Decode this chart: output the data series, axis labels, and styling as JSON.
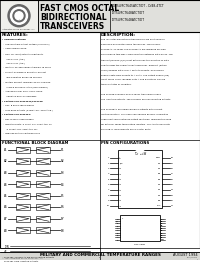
{
  "bg_color": "#f0f0ec",
  "white": "#ffffff",
  "black": "#000000",
  "dark_gray": "#444444",
  "med_gray": "#888888",
  "light_gray": "#cccccc",
  "header_bg": "#e0e0dc",
  "bottom_bg": "#d8d8d4",
  "title_line1": "FAST CMOS OCTAL",
  "title_line2": "BIDIRECTIONAL",
  "title_line3": "TRANSCEIVERS",
  "pn_line1": "IDT54/FCT645ATCT/DT - D/48-4TCT",
  "pn_line2": "IDT54/FCT648ATCT/DT",
  "pn_line3": "IDT54/FCT648ATCT/DT",
  "feat_title": "FEATURES:",
  "desc_title": "DESCRIPTION:",
  "fbd_title": "FUNCTIONAL BLOCK DIAGRAM",
  "pin_title": "PIN CONFIGURATIONS",
  "bottom_text": "MILITARY AND COMMERCIAL TEMPERATURE RANGES",
  "bottom_date": "AUGUST 1994",
  "a_pins": [
    "A1",
    "A2",
    "A3",
    "A4",
    "A5",
    "A6",
    "A7",
    "A8"
  ],
  "b_pins": [
    "B1",
    "B2",
    "B3",
    "B4",
    "B5",
    "B6",
    "B7",
    "B8"
  ],
  "dip_left_pins": [
    "ŏE",
    "T/R",
    "A1",
    "A2",
    "A3",
    "A4",
    "A5",
    "A6",
    "A7",
    "A8"
  ],
  "dip_right_pins": [
    "VCC",
    "B8",
    "B7",
    "B6",
    "B5",
    "B4",
    "B3",
    "B2",
    "B1",
    "GND"
  ],
  "features_lines": [
    "Common features:",
    " Low input and output voltage (Vref ±Vcc)",
    " CMOS power saving",
    " Dual TTL input/output compatibility",
    "   Von ± 2.0V (typ.)",
    "   Voh ± 0.3V (typ.)",
    " Meets or exceeds JEDEC standard 18 specs",
    " Product available in Radiation Tolerant",
    "   and Radiation Enhanced versions",
    " Military product compliances MIL-STD-883,",
    "   Class B and DESC-listed (dual marked)",
    " Available in DIP, SOIC, SSOP, QSOP,",
    "   CERPACK and LCC packages",
    "Features for FCT648AT/FCT648T:",
    " TBC, B and 8-speed grades",
    " High drive outputs (±16mA ±cc, 64mA typ.)",
    "Features for FCT648T:",
    " Bac, B and C-speed grades",
    " Resistor inputs: ± 10mA Occ, 16mA typ. Cl I",
    "   ± 100mA Occ, 18mA typ. MIL",
    " Reduced system switching noise"
  ],
  "desc_lines": [
    "The IDT octal bidirectional transceivers are built using an",
    "advanced dual metal CMOS technology. The FCT648,",
    "FCT648AT, FCT648T and FCT648-AT are designed for high-",
    "performance two-way communication between data buses. The",
    "transmit/receive (T/R) input determines the direction of data",
    "flow through the bidirectional transceiver. Transmit (active",
    "HIGH) enables data from A ports to B ports, and receive",
    "enables data from B ports to A ports. The output enable (OE)",
    "input, when HIGH, disables both A and B ports by placing",
    "them in states of condition.",
    "",
    "The FCT648-FCE648T and FCT648T transceivers have",
    "non inverting outputs. The FCT648T has non inverting outputs.",
    "",
    "The FCT648AT has balanced drive outputs with current",
    "limiting resistors. This offers less ground bounce, eliminates",
    "undershoot and controlled output fall times, reducing the need",
    "for external series terminating resistors. The AT9 to pull ports",
    "are plug-in replacements for FCT octal parts."
  ],
  "note_lines": [
    "FCT648T, FCT648-AT are non-inverting outputs",
    "FCT648T have inverting outputs"
  ]
}
